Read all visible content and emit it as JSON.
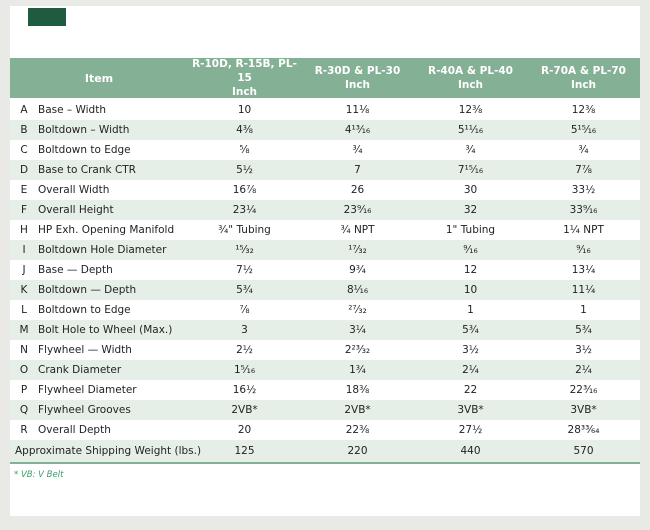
{
  "header": {
    "item_label": "Item",
    "unit_label": "Inch",
    "columns": [
      "R-10D, R-15B, PL-15",
      "R-30D & PL-30",
      "R-40A & PL-40",
      "R-70A & PL-70"
    ]
  },
  "rows": [
    {
      "letter": "A",
      "item": "Base – Width",
      "values": [
        "10",
        "11⅛",
        "12⅜",
        "12⅜"
      ]
    },
    {
      "letter": "B",
      "item": "Boltdown – Width",
      "values": [
        "4⅜",
        "4¹³⁄₁₆",
        "5¹¹⁄₁₆",
        "5¹⁵⁄₁₆"
      ]
    },
    {
      "letter": "C",
      "item": "Boltdown to Edge",
      "values": [
        "⅝",
        "¾",
        "¾",
        "¾"
      ]
    },
    {
      "letter": "D",
      "item": "Base to Crank CTR",
      "values": [
        "5½",
        "7",
        "7¹⁵⁄₁₆",
        "7⅞"
      ]
    },
    {
      "letter": "E",
      "item": "Overall Width",
      "values": [
        "16⅞",
        "26",
        "30",
        "33½"
      ]
    },
    {
      "letter": "F",
      "item": "Overall Height",
      "values": [
        "23¼",
        "23⁹⁄₁₆",
        "32",
        "33⁹⁄₁₆"
      ]
    },
    {
      "letter": "H",
      "item": "HP Exh. Opening Manifold",
      "values": [
        "¾\" Tubing",
        "¾ NPT",
        "1\" Tubing",
        "1¼ NPT"
      ]
    },
    {
      "letter": "I",
      "item": "Boltdown Hole Diameter",
      "values": [
        "¹⁵⁄₃₂",
        "¹⁷⁄₃₂",
        "⁹⁄₁₆",
        "⁹⁄₁₆"
      ]
    },
    {
      "letter": "J",
      "item": "Base — Depth",
      "values": [
        "7½",
        "9¾",
        "12",
        "13¼"
      ]
    },
    {
      "letter": "K",
      "item": "Boltdown — Depth",
      "values": [
        "5¾",
        "8¹⁄₁₆",
        "10",
        "11¼"
      ]
    },
    {
      "letter": "L",
      "item": "Boltdown to Edge",
      "values": [
        "⅞",
        "²⁷⁄₃₂",
        "1",
        "1"
      ]
    },
    {
      "letter": "M",
      "item": "Bolt Hole to Wheel (Max.)",
      "values": [
        "3",
        "3¼",
        "5¾",
        "5¾"
      ]
    },
    {
      "letter": "N",
      "item": "Flywheel — Width",
      "values": [
        "2½",
        "2²³⁄₃₂",
        "3½",
        "3½"
      ]
    },
    {
      "letter": "O",
      "item": "Crank Diameter",
      "values": [
        "1⁵⁄₁₆",
        "1¾",
        "2¼",
        "2¼"
      ]
    },
    {
      "letter": "P",
      "item": "Flywheel Diameter",
      "values": [
        "16½",
        "18⅜",
        "22",
        "22³⁄₁₆"
      ]
    },
    {
      "letter": "Q",
      "item": "Flywheel Grooves",
      "values": [
        "2VB*",
        "2VB*",
        "3VB*",
        "3VB*"
      ]
    },
    {
      "letter": "R",
      "item": "Overall Depth",
      "values": [
        "20",
        "22⅜",
        "27½",
        "28³³⁄₆₄"
      ]
    }
  ],
  "footer_row": {
    "label": "Approximate Shipping Weight (lbs.)",
    "values": [
      "125",
      "220",
      "440",
      "570"
    ]
  },
  "footnote": "* VB: V Belt",
  "colors": {
    "canvas_bg": "#e9e9e6",
    "page_bg": "#ffffff",
    "header_green": "#84b095",
    "stripe_green": "#e5efe7",
    "logo_green": "#1f5b3e",
    "footnote_green": "#3f9a68",
    "text": "#221f1f"
  }
}
